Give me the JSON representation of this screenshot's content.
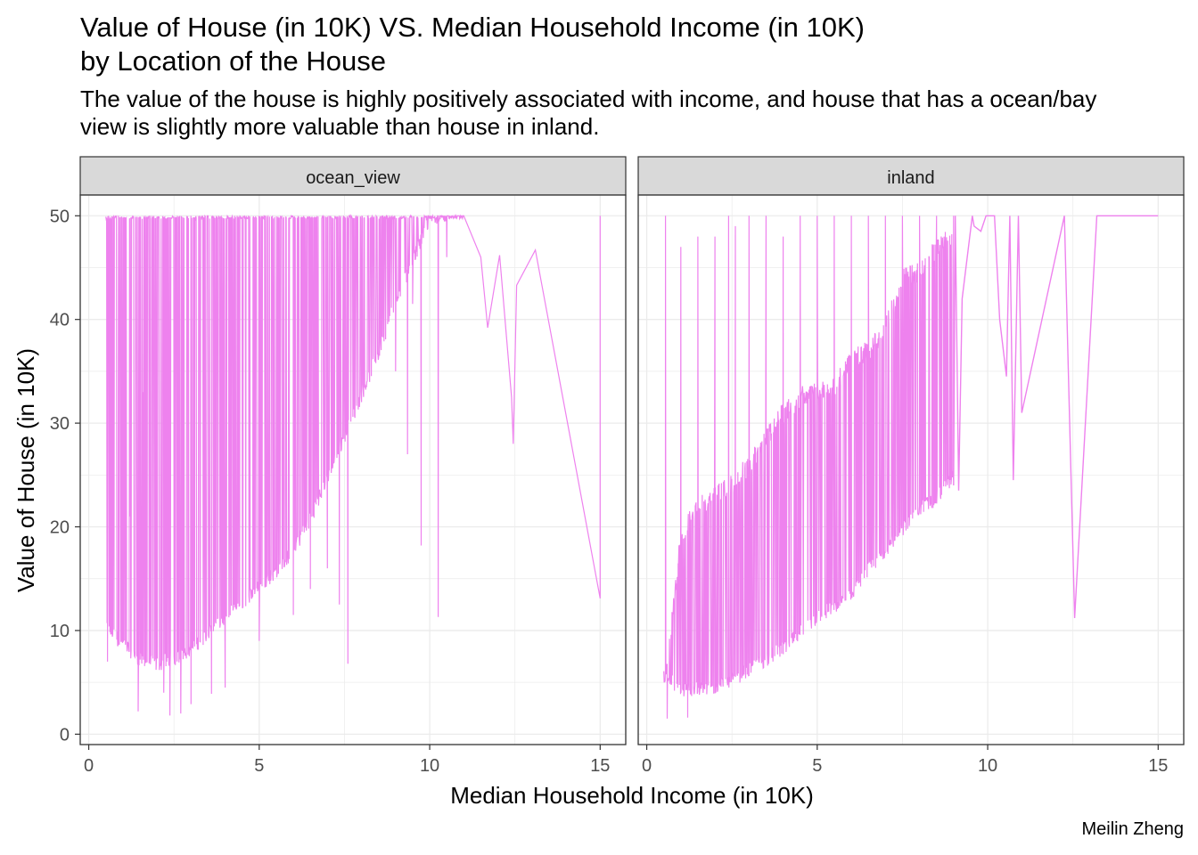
{
  "header": {
    "title": "Value of House (in 10K) VS. Median Household Income (in 10K)\nby Location of the House",
    "subtitle": "The value of the house is highly positively associated with income, and house that has a ocean/bay\nview is slightly more valuable than house in inland."
  },
  "caption": "Meilin Zheng",
  "colors": {
    "line": "#EE82EE",
    "strip_bg": "#D9D9D9",
    "grid": "#EBEBEB",
    "panel_border": "#333333"
  },
  "chart_data": {
    "type": "line",
    "xlabel": "Median Household Income (in 10K)",
    "ylabel": "Value of House (in 10K)",
    "xlim": [
      -0.25,
      15.75
    ],
    "ylim": [
      -1,
      52
    ],
    "x_ticks": [
      "0",
      "5",
      "10",
      "15"
    ],
    "y_ticks": [
      "0",
      "10",
      "20",
      "30",
      "40",
      "50"
    ],
    "grid": true,
    "legend": "none",
    "facets": [
      {
        "name": "ocean_view",
        "envelope_top": [
          [
            0.5,
            50
          ],
          [
            15.0,
            50
          ]
        ],
        "envelope_bottom": [
          [
            0.5,
            9.5
          ],
          [
            1.0,
            8.0
          ],
          [
            1.5,
            6.5
          ],
          [
            2.0,
            6.0
          ],
          [
            2.5,
            6.5
          ],
          [
            3.0,
            7.5
          ],
          [
            3.5,
            9.0
          ],
          [
            4.0,
            10.5
          ],
          [
            4.5,
            12.0
          ],
          [
            5.0,
            13.5
          ],
          [
            5.5,
            15.0
          ],
          [
            6.0,
            17.0
          ],
          [
            6.5,
            20.0
          ],
          [
            7.0,
            24.0
          ],
          [
            7.5,
            28.0
          ],
          [
            8.0,
            32.0
          ],
          [
            8.5,
            36.0
          ],
          [
            9.0,
            41.0
          ],
          [
            9.5,
            45.0
          ],
          [
            10.0,
            49.0
          ],
          [
            10.5,
            49.5
          ],
          [
            11.0,
            50.0
          ]
        ],
        "spikes": [
          [
            0.55,
            7.0
          ],
          [
            0.62,
            37.5
          ],
          [
            1.2,
            21.0
          ],
          [
            1.45,
            2.2
          ],
          [
            1.6,
            33.0
          ],
          [
            2.2,
            4.0
          ],
          [
            2.38,
            1.8
          ],
          [
            2.7,
            2.0
          ],
          [
            3.0,
            2.9
          ],
          [
            3.6,
            3.9
          ],
          [
            4.0,
            4.5
          ],
          [
            5.0,
            9.0
          ],
          [
            6.0,
            11.5
          ],
          [
            6.5,
            14.0
          ],
          [
            7.0,
            16.0
          ],
          [
            7.35,
            12.5
          ],
          [
            7.6,
            6.8
          ],
          [
            9.0,
            35.0
          ],
          [
            9.35,
            27.0
          ],
          [
            9.5,
            41.5
          ],
          [
            9.6,
            47.0
          ],
          [
            9.75,
            18.2
          ],
          [
            10.25,
            11.3
          ],
          [
            10.5,
            46.0
          ],
          [
            11.5,
            46.0
          ],
          [
            11.7,
            39.2
          ],
          [
            12.05,
            46.2
          ],
          [
            12.4,
            32.5
          ],
          [
            12.45,
            28.0
          ],
          [
            12.55,
            43.3
          ],
          [
            13.1,
            46.7
          ],
          [
            15.0,
            13.1
          ]
        ]
      },
      {
        "name": "inland",
        "envelope_top_points": [
          [
            0.5,
            5.0
          ],
          [
            1.0,
            20.0
          ],
          [
            1.5,
            23.0
          ],
          [
            2.0,
            24.0
          ],
          [
            2.5,
            25.0
          ],
          [
            3.0,
            27.0
          ],
          [
            3.5,
            29.5
          ],
          [
            4.0,
            32.0
          ],
          [
            4.5,
            33.5
          ],
          [
            5.0,
            34.0
          ],
          [
            5.5,
            34.5
          ],
          [
            6.0,
            37.0
          ],
          [
            6.5,
            38.0
          ],
          [
            7.0,
            40.0
          ],
          [
            7.5,
            45.0
          ],
          [
            8.0,
            45.5
          ],
          [
            8.5,
            48.0
          ],
          [
            9.0,
            49.0
          ]
        ],
        "envelope_bottom": [
          [
            0.5,
            5.0
          ],
          [
            1.0,
            3.5
          ],
          [
            1.5,
            3.5
          ],
          [
            2.0,
            3.8
          ],
          [
            2.5,
            4.5
          ],
          [
            3.0,
            5.5
          ],
          [
            3.5,
            6.5
          ],
          [
            4.0,
            7.5
          ],
          [
            4.5,
            9.0
          ],
          [
            5.0,
            10.5
          ],
          [
            5.5,
            11.5
          ],
          [
            6.0,
            12.5
          ],
          [
            6.5,
            15.0
          ],
          [
            7.0,
            17.0
          ],
          [
            7.5,
            19.0
          ],
          [
            8.0,
            21.0
          ],
          [
            8.5,
            22.0
          ],
          [
            9.0,
            24.0
          ]
        ],
        "spikes": [
          [
            0.55,
            50.0
          ],
          [
            0.6,
            1.5
          ],
          [
            1.0,
            47.0
          ],
          [
            1.2,
            1.6
          ],
          [
            1.5,
            48.0
          ],
          [
            2.0,
            48.0
          ],
          [
            2.4,
            50.0
          ],
          [
            2.6,
            49.0
          ],
          [
            3.0,
            50.0
          ],
          [
            3.5,
            50.0
          ],
          [
            4.0,
            48.0
          ],
          [
            4.5,
            50.0
          ],
          [
            5.0,
            50.0
          ],
          [
            5.5,
            50.0
          ],
          [
            6.0,
            50.0
          ],
          [
            6.5,
            50.0
          ],
          [
            7.0,
            50.0
          ],
          [
            7.5,
            50.0
          ],
          [
            8.0,
            50.0
          ],
          [
            8.5,
            50.0
          ],
          [
            9.0,
            50.0
          ]
        ],
        "tail": [
          [
            9.0,
            24.0
          ],
          [
            9.05,
            50.0
          ],
          [
            9.15,
            23.5
          ],
          [
            9.25,
            42.0
          ],
          [
            9.55,
            50.0
          ],
          [
            9.6,
            49.0
          ],
          [
            9.8,
            48.5
          ],
          [
            9.95,
            50.0
          ],
          [
            10.2,
            50.0
          ],
          [
            10.35,
            40.0
          ],
          [
            10.55,
            34.5
          ],
          [
            10.65,
            50.0
          ],
          [
            10.75,
            24.5
          ],
          [
            10.9,
            50.0
          ],
          [
            11.0,
            31.0
          ],
          [
            12.25,
            50.0
          ],
          [
            12.55,
            11.2
          ],
          [
            13.2,
            50.0
          ],
          [
            15.0,
            50.0
          ]
        ]
      }
    ]
  }
}
